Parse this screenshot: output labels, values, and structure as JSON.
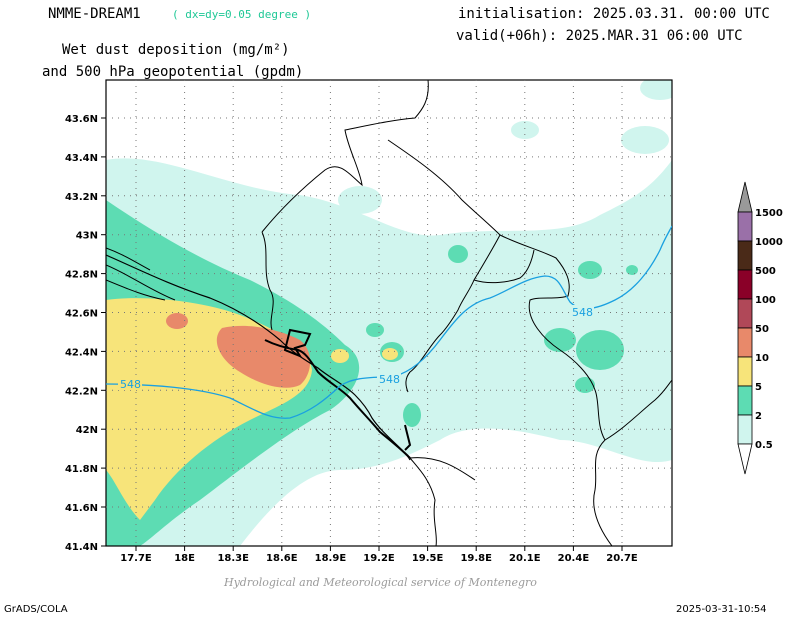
{
  "header": {
    "model": "NMME-DREAM1",
    "resolution": "( dx=dy=0.05 degree )",
    "init": "initialisation: 2025.03.31. 00:00 UTC",
    "valid": "valid(+06h): 2025.MAR.31 06:00 UTC",
    "title_line1": "Wet dust deposition (mg/m²)",
    "title_line2": "and 500 hPa geopotential (gpdm)"
  },
  "map": {
    "lat_labels": [
      "43.6N",
      "43.4N",
      "43.2N",
      "43N",
      "42.8N",
      "42.6N",
      "42.4N",
      "42.2N",
      "42N",
      "41.8N",
      "41.6N",
      "41.4N"
    ],
    "lon_labels": [
      "17.7E",
      "18E",
      "18.3E",
      "18.6E",
      "18.9E",
      "19.2E",
      "19.5E",
      "19.8E",
      "20.1E",
      "20.4E",
      "20.7E"
    ],
    "contour_labels": [
      "548",
      "548",
      "548"
    ],
    "colors": {
      "c05": "#d0f5ee",
      "c2": "#5ddcb3",
      "c5": "#f7e47a",
      "c10": "#e8896a",
      "c50": "#c05a48",
      "contour": "#1aa0e0"
    }
  },
  "legend": {
    "labels": [
      "1500",
      "1000",
      "500",
      "100",
      "50",
      "10",
      "5",
      "2",
      "0.5"
    ],
    "colors": [
      "#9a70a8",
      "#4a2a18",
      "#8a0028",
      "#b04858",
      "#e8896a",
      "#f7e47a",
      "#5ddcb3",
      "#d0f5ee"
    ]
  },
  "footer": {
    "credit": "Hydrological and Meteorological service of Montenegro",
    "grads": "GrADS/COLA",
    "date": "2025-03-31-10:54"
  }
}
